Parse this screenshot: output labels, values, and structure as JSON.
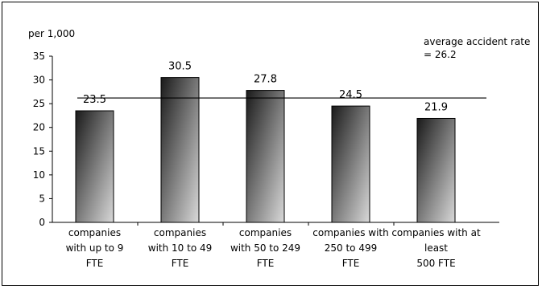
{
  "chart_data": {
    "type": "bar",
    "unit_label": "per 1,000",
    "categories": [
      [
        "companies",
        "with up to 9",
        "FTE"
      ],
      [
        "companies",
        "with 10 to 49",
        "FTE"
      ],
      [
        "companies",
        "with 50 to 249",
        "FTE"
      ],
      [
        "companies with",
        "250 to 499",
        "FTE"
      ],
      [
        "companies with at",
        "least",
        "500 FTE"
      ]
    ],
    "values": [
      23.5,
      30.5,
      27.8,
      24.5,
      21.9
    ],
    "value_labels": [
      "23.5",
      "30.5",
      "27.8",
      "24.5",
      "21.9"
    ],
    "ylim": [
      0,
      35
    ],
    "yticks": [
      0,
      5,
      10,
      15,
      20,
      25,
      30,
      35
    ],
    "reference_line": {
      "value": 26.2,
      "label_lines": [
        "average accident rate",
        "= 26.2"
      ]
    },
    "bar_gradient": [
      "#1a1a1a",
      "#d9d9d9"
    ],
    "grid": false,
    "legend": "none"
  }
}
